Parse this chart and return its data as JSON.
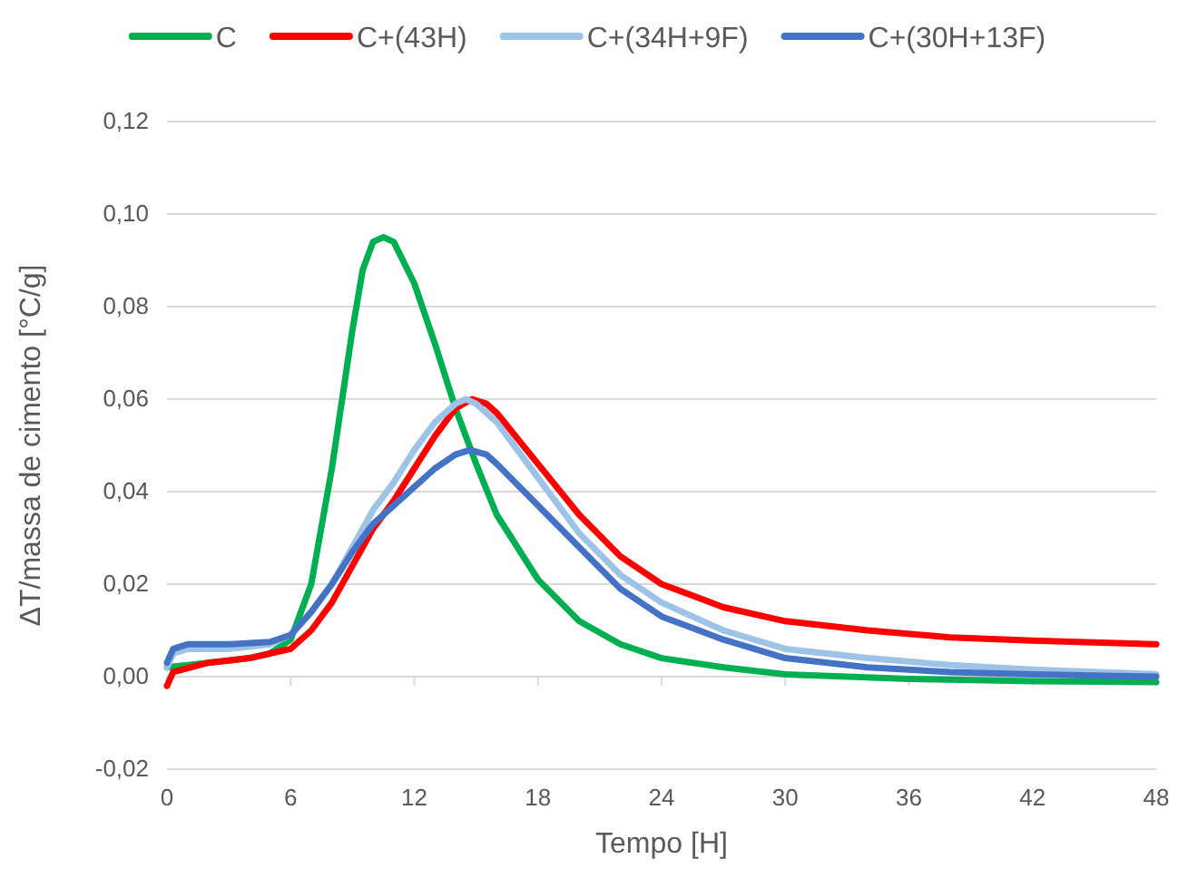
{
  "chart_data": {
    "type": "line",
    "xlabel": "Tempo [H]",
    "ylabel": "ΔT/massa de cimento [°C/g]",
    "xlim": [
      0,
      48
    ],
    "xticks": [
      0,
      6,
      12,
      18,
      24,
      30,
      36,
      42,
      48
    ],
    "ylim": [
      -0.02,
      0.12
    ],
    "yticks": [
      {
        "value": -0.02,
        "label": "-0,02"
      },
      {
        "value": 0,
        "label": "0,00"
      },
      {
        "value": 0.02,
        "label": "0,02"
      },
      {
        "value": 0.04,
        "label": "0,04"
      },
      {
        "value": 0.06,
        "label": "0,06"
      },
      {
        "value": 0.08,
        "label": "0,08"
      },
      {
        "value": 0.1,
        "label": "0,10"
      },
      {
        "value": 0.12,
        "label": "0,12"
      }
    ],
    "grid": "y",
    "legend": "top",
    "marker": "none",
    "line_style": "solid",
    "series": [
      {
        "name": "C",
        "color": "#00b050",
        "x": [
          0,
          4,
          5,
          6,
          7,
          8,
          9,
          9.5,
          10,
          10.5,
          11,
          12,
          13,
          14,
          15,
          16,
          18,
          20,
          22,
          24,
          27,
          30,
          36,
          42,
          48
        ],
        "values": [
          0.002,
          0.004,
          0.005,
          0.008,
          0.02,
          0.045,
          0.075,
          0.088,
          0.094,
          0.095,
          0.094,
          0.085,
          0.072,
          0.058,
          0.046,
          0.035,
          0.021,
          0.012,
          0.007,
          0.004,
          0.002,
          0.0005,
          -0.0005,
          -0.001,
          -0.0012
        ]
      },
      {
        "name": "C+(43H)",
        "color": "#ff0000",
        "x": [
          0,
          0.3,
          2,
          4,
          6,
          7,
          8,
          9,
          10,
          11,
          12,
          13,
          14,
          14.8,
          15.5,
          16,
          18,
          20,
          22,
          24,
          27,
          30,
          34,
          38,
          42,
          48
        ],
        "values": [
          -0.002,
          0.001,
          0.003,
          0.004,
          0.006,
          0.01,
          0.016,
          0.024,
          0.032,
          0.038,
          0.045,
          0.052,
          0.058,
          0.06,
          0.059,
          0.057,
          0.046,
          0.035,
          0.026,
          0.02,
          0.015,
          0.012,
          0.01,
          0.0085,
          0.0078,
          0.007
        ]
      },
      {
        "name": "C+(34H+9F)",
        "color": "#9dc3e6",
        "x": [
          0,
          0.3,
          1,
          3,
          5,
          6,
          7,
          8,
          9,
          10,
          11,
          12,
          13,
          14,
          14.5,
          15,
          16,
          18,
          20,
          22,
          24,
          27,
          30,
          34,
          38,
          42,
          48
        ],
        "values": [
          0.002,
          0.005,
          0.006,
          0.006,
          0.007,
          0.009,
          0.014,
          0.02,
          0.028,
          0.036,
          0.042,
          0.049,
          0.055,
          0.059,
          0.06,
          0.059,
          0.055,
          0.043,
          0.031,
          0.022,
          0.016,
          0.01,
          0.006,
          0.004,
          0.0025,
          0.0015,
          0.0005
        ]
      },
      {
        "name": "C+(30H+13F)",
        "color": "#4472c4",
        "x": [
          0,
          0.3,
          1,
          3,
          5,
          6,
          7,
          8,
          9,
          10,
          11,
          12,
          13,
          14,
          14.7,
          15.5,
          16,
          18,
          20,
          22,
          24,
          27,
          30,
          34,
          38,
          42,
          48
        ],
        "values": [
          0.003,
          0.006,
          0.007,
          0.007,
          0.0075,
          0.009,
          0.014,
          0.02,
          0.027,
          0.033,
          0.037,
          0.041,
          0.045,
          0.048,
          0.049,
          0.048,
          0.046,
          0.037,
          0.028,
          0.019,
          0.013,
          0.008,
          0.004,
          0.002,
          0.001,
          0.0005,
          0
        ]
      }
    ]
  }
}
